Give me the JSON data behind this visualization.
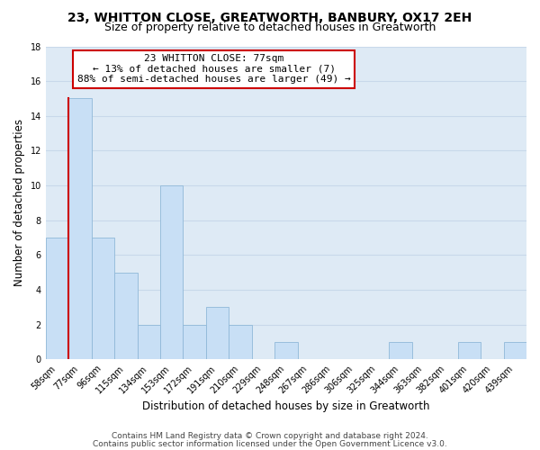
{
  "title1": "23, WHITTON CLOSE, GREATWORTH, BANBURY, OX17 2EH",
  "title2": "Size of property relative to detached houses in Greatworth",
  "xlabel": "Distribution of detached houses by size in Greatworth",
  "ylabel": "Number of detached properties",
  "bin_labels": [
    "58sqm",
    "77sqm",
    "96sqm",
    "115sqm",
    "134sqm",
    "153sqm",
    "172sqm",
    "191sqm",
    "210sqm",
    "229sqm",
    "248sqm",
    "267sqm",
    "286sqm",
    "306sqm",
    "325sqm",
    "344sqm",
    "363sqm",
    "382sqm",
    "401sqm",
    "420sqm",
    "439sqm"
  ],
  "bar_heights": [
    7,
    15,
    7,
    5,
    2,
    10,
    2,
    3,
    2,
    0,
    1,
    0,
    0,
    0,
    0,
    1,
    0,
    0,
    1,
    0,
    1
  ],
  "bar_color": "#c8dff5",
  "bar_edge_color": "#90b8d8",
  "highlight_bar_index": 1,
  "highlight_edge_color": "#cc0000",
  "annotation_line1": "23 WHITTON CLOSE: 77sqm",
  "annotation_line2": "← 13% of detached houses are smaller (7)",
  "annotation_line3": "88% of semi-detached houses are larger (49) →",
  "annotation_box_facecolor": "#ffffff",
  "annotation_box_edgecolor": "#cc0000",
  "ylim": [
    0,
    18
  ],
  "yticks": [
    0,
    2,
    4,
    6,
    8,
    10,
    12,
    14,
    16,
    18
  ],
  "grid_color": "#c8d8ea",
  "plot_bg_color": "#deeaf5",
  "footer1": "Contains HM Land Registry data © Crown copyright and database right 2024.",
  "footer2": "Contains public sector information licensed under the Open Government Licence v3.0.",
  "title_fontsize": 10,
  "subtitle_fontsize": 9,
  "axis_label_fontsize": 8.5,
  "tick_fontsize": 7,
  "annotation_fontsize": 8,
  "footer_fontsize": 6.5
}
